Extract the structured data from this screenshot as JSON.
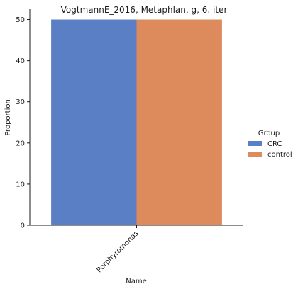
{
  "chart_data": {
    "type": "bar",
    "title": "VogtmannE_2016, Metaphlan, g, 6. iter",
    "xlabel": "Name",
    "ylabel": "Proportion",
    "categories": [
      "Porphyromonas"
    ],
    "series": [
      {
        "name": "CRC",
        "values": [
          50
        ],
        "color": "#5b7fc4"
      },
      {
        "name": "control",
        "values": [
          50
        ],
        "color": "#dd8a5c"
      }
    ],
    "ylim": [
      0,
      52.5
    ],
    "yticks": [
      0,
      10,
      20,
      30,
      40,
      50
    ],
    "grid": false,
    "legend": {
      "title": "Group",
      "placement": "right"
    }
  }
}
